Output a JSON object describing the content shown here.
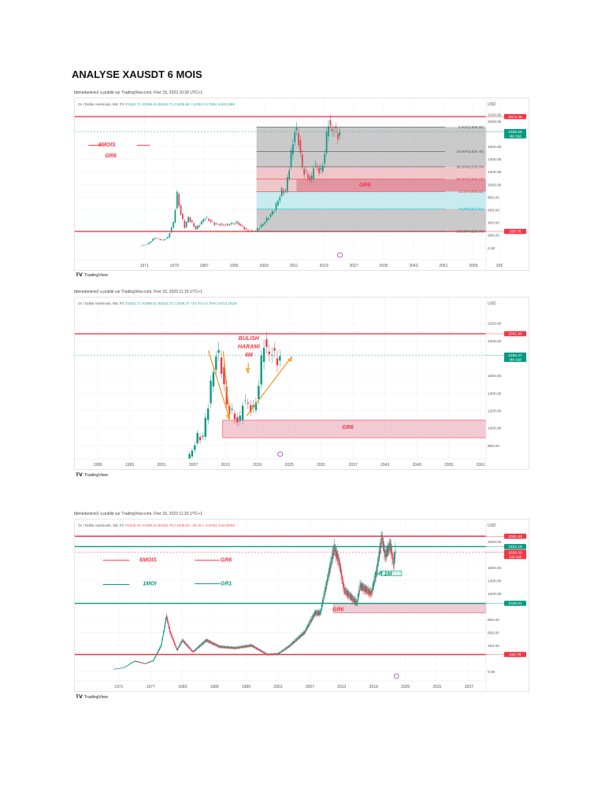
{
  "document_title": "ANALYSE XAUSDT 6 MOIS",
  "tradingview_label": "TradingView",
  "price_path": [
    [
      1970,
      35
    ],
    [
      1972,
      60
    ],
    [
      1974,
      160
    ],
    [
      1976,
      120
    ],
    [
      1977.5,
      165
    ],
    [
      1979,
      400
    ],
    [
      1980,
      850
    ],
    [
      1980.7,
      600
    ],
    [
      1982,
      330
    ],
    [
      1983,
      480
    ],
    [
      1985,
      300
    ],
    [
      1987.5,
      480
    ],
    [
      1990,
      380
    ],
    [
      1993,
      360
    ],
    [
      1996,
      400
    ],
    [
      1999,
      260
    ],
    [
      2001,
      270
    ],
    [
      2003,
      380
    ],
    [
      2006,
      600
    ],
    [
      2008,
      900
    ],
    [
      2009,
      900
    ],
    [
      2011.6,
      1900
    ],
    [
      2012.5,
      1700
    ],
    [
      2013.5,
      1250
    ],
    [
      2015.9,
      1050
    ],
    [
      2016.5,
      1320
    ],
    [
      2018.6,
      1200
    ],
    [
      2019.5,
      1500
    ],
    [
      2020.6,
      2070
    ],
    [
      2021.2,
      1780
    ],
    [
      2022.2,
      1950
    ],
    [
      2022.8,
      1650
    ],
    [
      2023.1,
      1836
    ]
  ],
  "charts": [
    {
      "caption": "bbmedamine2 a publié sur TradingView.com, Févr 15, 2023 10:39 UTC+1",
      "symbol": "Or / Dollar Américain, 6M, FX",
      "ohlc": [
        "O1822.71",
        "H1959.61",
        "B1822.71",
        "C1836.56",
        "+13.85 (+0.76%)",
        "Vol13.18M"
      ],
      "negative": false,
      "currency": "USD",
      "step_years": 0.5,
      "ylim": [
        -186,
        2360
      ],
      "xlim": [
        1952.4,
        2062.4
      ],
      "y_ticks": [
        "2100.00",
        "2000.00",
        "1600.00",
        "1400.00",
        "1200.00",
        "1000.00",
        "800.00",
        "600.00",
        "400.00",
        "200.00",
        "0.00"
      ],
      "y_tick_values": [
        2100,
        2000,
        1600,
        1400,
        1200,
        1000,
        800,
        600,
        400,
        200,
        0
      ],
      "x_ticks": [
        "1971",
        "1979",
        "1987",
        "1995",
        "2003",
        "2011",
        "2019",
        "2027",
        "2035",
        "2043",
        "2051",
        "2059",
        "20€"
      ],
      "x_tick_values": [
        1971,
        1979,
        1987,
        1995,
        2003,
        2011,
        2019,
        2027,
        2035,
        2043,
        2051,
        2059,
        2066
      ],
      "zones": [
        {
          "p1": 1909.58,
          "p2": 260.78,
          "x1": 2001,
          "x2": null,
          "fill": "#9e9e9e",
          "opacity": 0.55
        },
        {
          "p1": 1279.74,
          "p2": 890.62,
          "x1": 2001,
          "x2": null,
          "fill": "#f8c6c9",
          "opacity": 0.8
        },
        {
          "p1": 890.62,
          "p2": 613.62,
          "x1": 2001,
          "x2": null,
          "fill": "#c6eef2",
          "opacity": 0.9
        },
        {
          "p1": 1085.18,
          "p2": 890.62,
          "x1": 2011.7,
          "x2": null,
          "fill": "#d66b7f",
          "opacity": 0.55
        }
      ],
      "lines": [
        {
          "price": 2072.35,
          "color": "#f23645",
          "width": 1.4
        },
        {
          "price": 1836.56,
          "color": "#26a69a",
          "width": 0.5,
          "dash": true
        },
        {
          "price": 260.78,
          "color": "#f23645",
          "width": 1.4
        }
      ],
      "fib_lines": [
        {
          "price": 1909.58,
          "label": "0.00%(1909.58)",
          "color": "#555"
        },
        {
          "price": 1520.46,
          "label": "23.60%(1520.46)",
          "color": "#555"
        },
        {
          "price": 1279.74,
          "label": "38.20%(1279.74)",
          "color": "#555"
        },
        {
          "price": 1085.18,
          "label": "50.00%(1085.18)",
          "color": "#f23645"
        },
        {
          "price": 890.62,
          "label": "61.80%(890.62)",
          "color": "#f23645"
        },
        {
          "price": 613.62,
          "label": "78.60%(613.62)",
          "color": "#00bcd4"
        },
        {
          "price": 260.78,
          "label": "100.00%(260.78)",
          "color": "#555"
        }
      ],
      "tags": [
        {
          "price": 2072.35,
          "text": "2072.35",
          "sub": "",
          "color": "#f23645"
        },
        {
          "price": 1836.56,
          "text": "1836.56",
          "sub": "4M 16d",
          "color": "#089981"
        },
        {
          "price": 260.78,
          "text": "260.78",
          "sub": "",
          "color": "#f23645"
        }
      ],
      "labels": [
        {
          "text": "6MOIS",
          "year": 1961,
          "price": 1600,
          "color": "#f23645",
          "size": 7
        },
        {
          "text": "GR6",
          "year": 1962,
          "price": 1430,
          "color": "#f23645",
          "size": 7
        },
        {
          "text": "GR6",
          "year": 2030,
          "price": 970,
          "color": "#f23645",
          "size": 7
        }
      ],
      "legend_lines": [
        {
          "x1": 1956,
          "x2": 1959.5,
          "price": 1620,
          "color": "#f23645"
        },
        {
          "x1": 1969,
          "x2": 1972.5,
          "price": 1620,
          "color": "#f23645"
        }
      ],
      "arrows": []
    },
    {
      "caption": "bbmedamine2 a publié sur TradingView.com, Févr 15, 2023 11:15 UTC+1",
      "symbol": "Or / Dollar Américain, 6M, FX",
      "ohlc": [
        "O1822.71",
        "H1959.61",
        "B1822.71",
        "C1836.47",
        "+13.76 (+0.75%)",
        "Vol13.191M"
      ],
      "negative": false,
      "currency": "USD",
      "step_years": 0.5,
      "ylim": [
        647,
        2497
      ],
      "xlim": [
        1984.7,
        2062.0
      ],
      "y_ticks": [
        "2200.00",
        "2000.00",
        "1600.00",
        "1400.00",
        "1200.00",
        "1000.00",
        "800.00"
      ],
      "y_tick_values": [
        2200,
        2000,
        1600,
        1400,
        1200,
        1000,
        800
      ],
      "x_ticks": [
        "1989",
        "1995",
        "2001",
        "2007",
        "2013",
        "2019",
        "2025",
        "2031",
        "2037",
        "2043",
        "2049",
        "2055",
        "2061"
      ],
      "x_tick_values": [
        1989,
        1995,
        2001,
        2007,
        2013,
        2019,
        2025,
        2031,
        2037,
        2043,
        2049,
        2055,
        2061
      ],
      "zones": [
        {
          "p1": 1090,
          "p2": 890,
          "x1": 2012.5,
          "x2": 2062.7,
          "fill": "#e9a6b6",
          "opacity": 0.6,
          "stroke": "#f23645"
        }
      ],
      "lines": [
        {
          "price": 2081.6,
          "color": "#f23645",
          "width": 1.4
        },
        {
          "price": 1836.47,
          "color": "#26a69a",
          "width": 0.5,
          "dash": true
        }
      ],
      "fib_lines": [],
      "tags": [
        {
          "price": 2081.6,
          "text": "2081.60",
          "sub": "",
          "color": "#f23645"
        },
        {
          "price": 1836.47,
          "text": "1836.47",
          "sub": "4M 16d",
          "color": "#089981"
        }
      ],
      "labels": [
        {
          "text": "BULISH",
          "year": 2017.4,
          "price": 2010,
          "color": "#f23645",
          "size": 7
        },
        {
          "text": "HARAMI",
          "year": 2017.4,
          "price": 1915,
          "color": "#f23645",
          "size": 7
        },
        {
          "text": "6M",
          "year": 2017.4,
          "price": 1820,
          "color": "#f23645",
          "size": 7
        },
        {
          "text": "GR6",
          "year": 2036,
          "price": 990,
          "color": "#f23645",
          "size": 7
        }
      ],
      "legend_lines": [],
      "arrows": [
        {
          "x1": 2009.8,
          "p1": 1890,
          "x2": 2013.8,
          "p2": 1100,
          "color": "#f7931a"
        },
        {
          "x1": 2013.8,
          "p1": 1100,
          "x2": 2012.6,
          "p2": 1880,
          "color": "#f7931a",
          "noHead": true
        },
        {
          "x1": 2017.3,
          "p1": 1750,
          "x2": 2017.3,
          "p2": 1630,
          "color": "#f7931a"
        },
        {
          "x1": 2017.0,
          "p1": 1140,
          "x2": 2025.5,
          "p2": 1820,
          "color": "#f7931a"
        }
      ]
    },
    {
      "caption": "bbmedamine2 a publié sur TradingView.com, Févr 15, 2023 11:33 UTC+1",
      "symbol": "Or / Dollar Américain, 1M, FX",
      "ohlc": [
        "O1928.26",
        "H1959.61",
        "B1831.75",
        "C1835.00",
        "−93.26 (−4.84%)",
        "Vol4.993M"
      ],
      "negative": true,
      "currency": "USD",
      "step_years": 0.0833,
      "ylim": [
        -145,
        2339
      ],
      "xlim": [
        1962.7,
        2040.2
      ],
      "y_ticks": [
        "2000.00",
        "1600.00",
        "1400.00",
        "1200.00",
        "800.00",
        "600.00",
        "400.00",
        "0.00"
      ],
      "y_tick_values": [
        2000,
        1600,
        1400,
        1200,
        800,
        600,
        400,
        0
      ],
      "x_ticks": [
        "1971",
        "1977",
        "1983",
        "1989",
        "1995",
        "2001",
        "2007",
        "2013",
        "2019",
        "2025",
        "2031",
        "2037"
      ],
      "x_tick_values": [
        1971,
        1977,
        1983,
        1989,
        1995,
        2001,
        2007,
        2013,
        2019,
        2025,
        2031,
        2037
      ],
      "zones": [
        {
          "p1": 1048.01,
          "p2": 900,
          "x1": 2011.5,
          "x2": 2040.2,
          "fill": "#e9b6c4",
          "opacity": 0.7,
          "stroke": "#d66b7f"
        },
        {
          "p1": 1550,
          "p2": 1470,
          "x1": 2020.4,
          "x2": 2024.3,
          "fill": "#d9f2ea",
          "opacity": 1,
          "stroke": "#089981"
        }
      ],
      "lines": [
        {
          "price": 2081.6,
          "color": "#f23645",
          "width": 1.4
        },
        {
          "price": 1922.15,
          "color": "#089981",
          "width": 1.4
        },
        {
          "price": 1835.0,
          "color": "#f23645",
          "width": 0.5,
          "dash": true
        },
        {
          "price": 1048.01,
          "color": "#089981",
          "width": 1.4
        },
        {
          "price": 260.78,
          "color": "#f23645",
          "width": 1.4
        }
      ],
      "fib_lines": [],
      "tags": [
        {
          "price": 2081.6,
          "text": "2081.60",
          "sub": "",
          "color": "#f23645"
        },
        {
          "price": 1922.15,
          "text": "1922.15",
          "sub": "",
          "color": "#089981"
        },
        {
          "price": 1835.0,
          "text": "1835.00",
          "sub": "13d 12h",
          "color": "#f23645"
        },
        {
          "price": 1048.01,
          "text": "1048.01",
          "sub": "",
          "color": "#089981"
        },
        {
          "price": 260.78,
          "text": "260.78",
          "sub": "",
          "color": "#f23645"
        }
      ],
      "labels": [
        {
          "text": "6MOIS",
          "year": 1976.5,
          "price": 1690,
          "color": "#f23645",
          "size": 7
        },
        {
          "text": "GR6",
          "year": 1991.2,
          "price": 1690,
          "color": "#f23645",
          "size": 7
        },
        {
          "text": "1MOI",
          "year": 1976.8,
          "price": 1330,
          "color": "#089981",
          "size": 7
        },
        {
          "text": "GR1",
          "year": 1991.2,
          "price": 1330,
          "color": "#089981",
          "size": 7
        },
        {
          "text": "GR 1M",
          "year": 2020.8,
          "price": 1480,
          "color": "#089981",
          "size": 7
        },
        {
          "text": "GR6",
          "year": 2012.3,
          "price": 930,
          "color": "#f23645",
          "size": 7
        }
      ],
      "legend_lines": [
        {
          "x1": 1968,
          "x2": 1973,
          "price": 1710,
          "color": "#f23645"
        },
        {
          "x1": 1985.3,
          "x2": 1990,
          "price": 1710,
          "color": "#f23645"
        },
        {
          "x1": 1968,
          "x2": 1973,
          "price": 1340,
          "color": "#089981"
        },
        {
          "x1": 1985.3,
          "x2": 1990,
          "price": 1350,
          "color": "#089981"
        }
      ],
      "arrows": []
    }
  ]
}
